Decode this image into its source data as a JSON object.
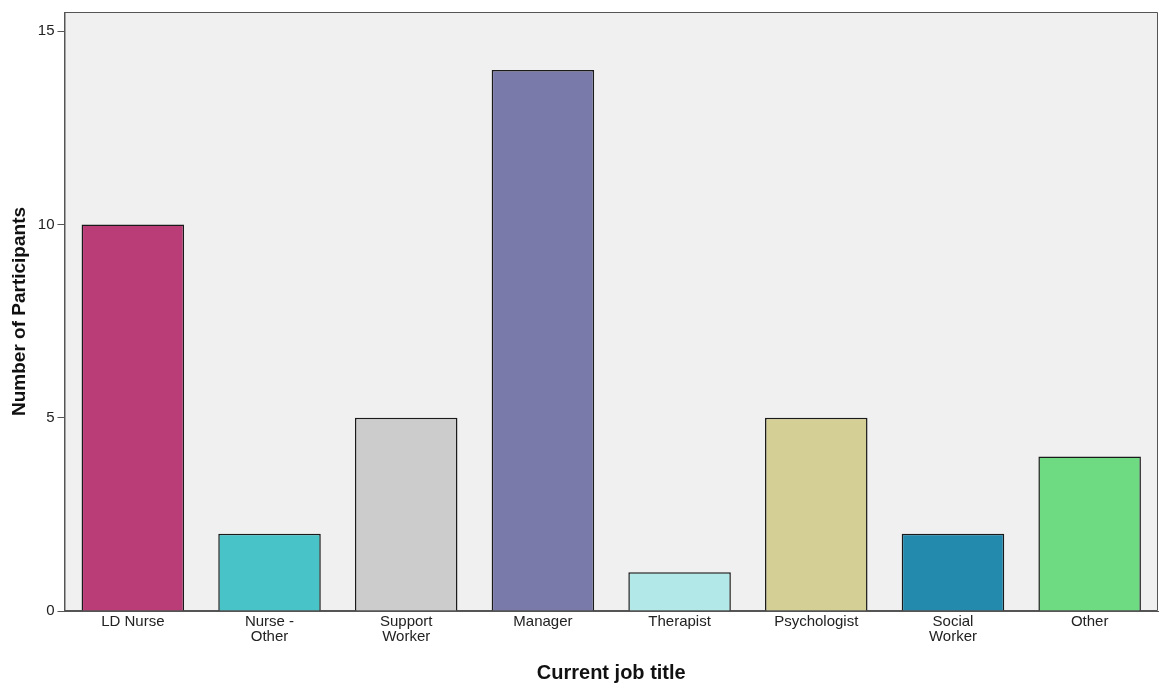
{
  "chart_data": {
    "type": "bar",
    "xlabel": "Current job title",
    "ylabel": "Number of Participants",
    "categories": [
      "LD Nurse",
      "Nurse - Other",
      "Support Worker",
      "Manager",
      "Therapist",
      "Psychologist",
      "Social Worker",
      "Other"
    ],
    "values": [
      10,
      2,
      5,
      14,
      1,
      5,
      2,
      4
    ],
    "colors": [
      "#bb3d78",
      "#48c3c8",
      "#cccccc",
      "#7a7aaa",
      "#b3e8e8",
      "#d4cf94",
      "#2389ad",
      "#6edb83"
    ],
    "ylim": [
      0,
      15.5
    ],
    "yticks": [
      0,
      5,
      10,
      15
    ],
    "grid": false,
    "legend": false
  }
}
